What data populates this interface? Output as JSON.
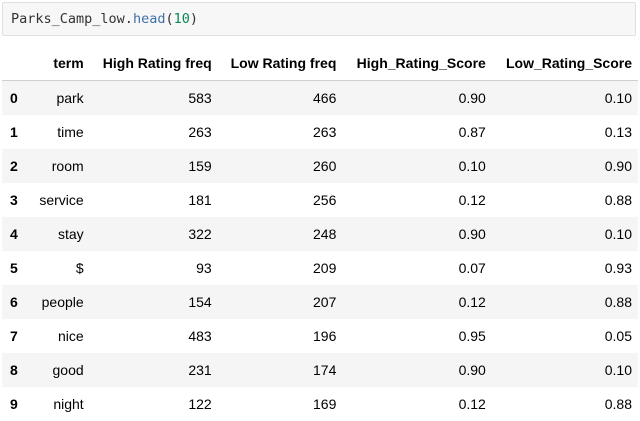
{
  "code_cell": {
    "var": "Parks_Camp_low",
    "method": "head",
    "arg": "10"
  },
  "table": {
    "columns": [
      "term",
      "High Rating freq",
      "Low Rating freq",
      "High_Rating_Score",
      "Low_Rating_Score"
    ],
    "rows": [
      {
        "index": "0",
        "term": "park",
        "high_freq": "583",
        "low_freq": "466",
        "high_score": "0.90",
        "low_score": "0.10"
      },
      {
        "index": "1",
        "term": "time",
        "high_freq": "263",
        "low_freq": "263",
        "high_score": "0.87",
        "low_score": "0.13"
      },
      {
        "index": "2",
        "term": "room",
        "high_freq": "159",
        "low_freq": "260",
        "high_score": "0.10",
        "low_score": "0.90"
      },
      {
        "index": "3",
        "term": "service",
        "high_freq": "181",
        "low_freq": "256",
        "high_score": "0.12",
        "low_score": "0.88"
      },
      {
        "index": "4",
        "term": "stay",
        "high_freq": "322",
        "low_freq": "248",
        "high_score": "0.90",
        "low_score": "0.10"
      },
      {
        "index": "5",
        "term": "$",
        "high_freq": "93",
        "low_freq": "209",
        "high_score": "0.07",
        "low_score": "0.93"
      },
      {
        "index": "6",
        "term": "people",
        "high_freq": "154",
        "low_freq": "207",
        "high_score": "0.12",
        "low_score": "0.88"
      },
      {
        "index": "7",
        "term": "nice",
        "high_freq": "483",
        "low_freq": "196",
        "high_score": "0.95",
        "low_score": "0.05"
      },
      {
        "index": "8",
        "term": "good",
        "high_freq": "231",
        "low_freq": "174",
        "high_score": "0.90",
        "low_score": "0.10"
      },
      {
        "index": "9",
        "term": "night",
        "high_freq": "122",
        "low_freq": "169",
        "high_score": "0.12",
        "low_score": "0.88"
      }
    ]
  }
}
